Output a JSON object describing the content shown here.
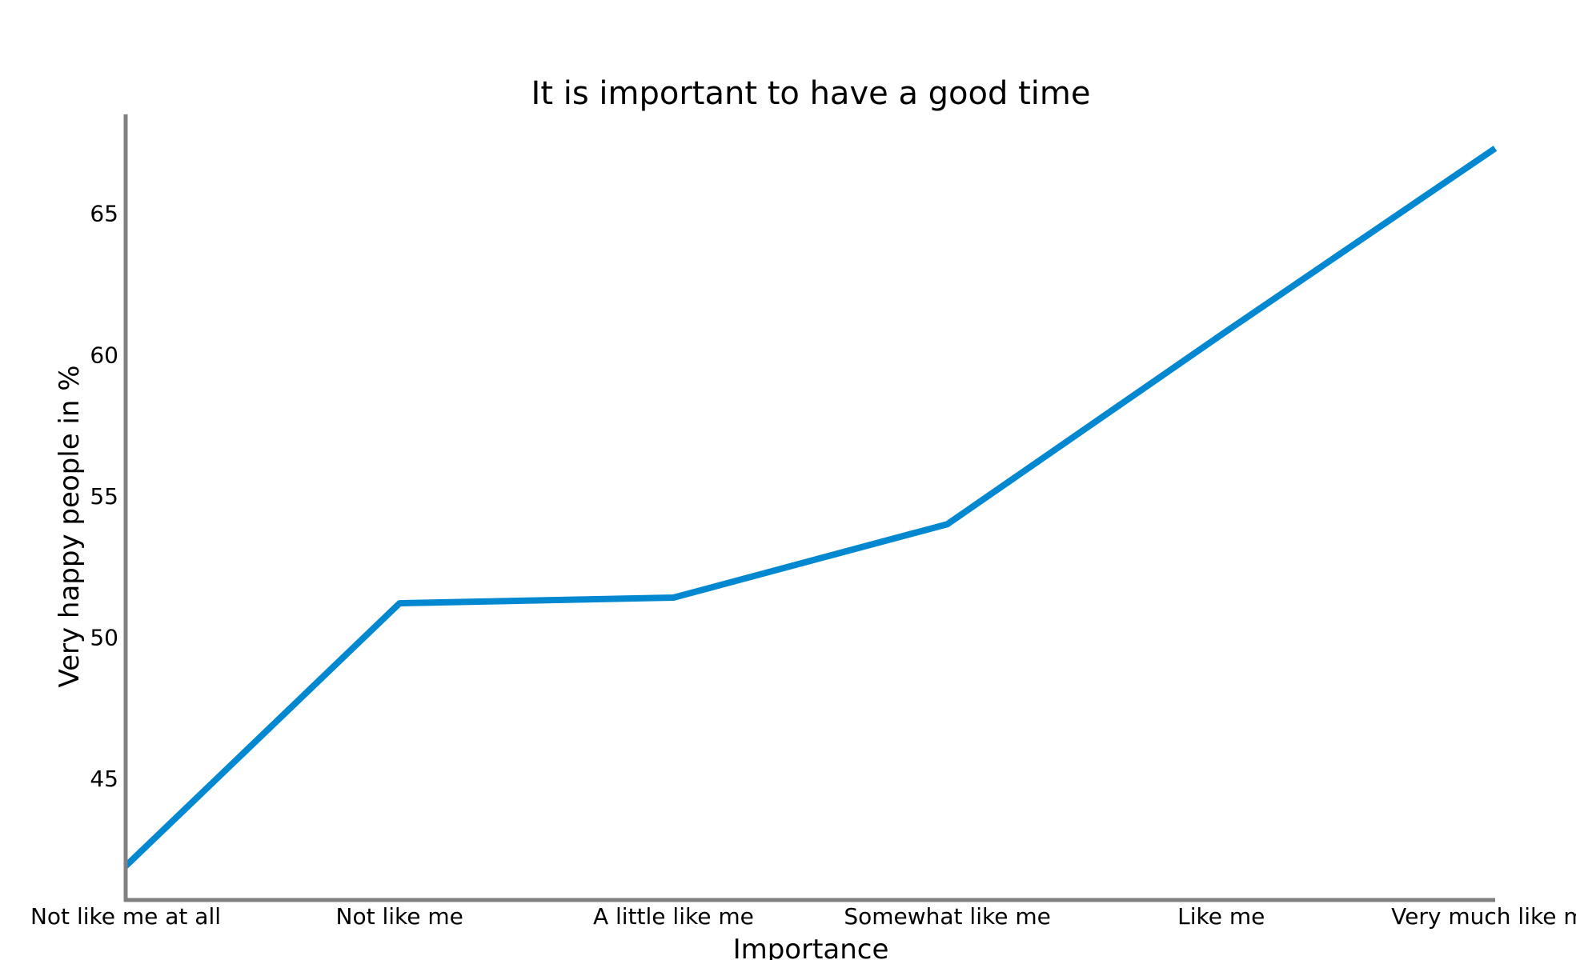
{
  "chart_data": {
    "type": "line",
    "title": "It is important to have a good time",
    "xlabel": "Importance",
    "ylabel": "Very happy people in %",
    "categories": [
      "Not like me at all",
      "Not like me",
      "A little like me",
      "Somewhat like me",
      "Like me",
      "Very much like me"
    ],
    "series": [
      {
        "values": [
          41.9,
          51.2,
          51.4,
          54.0,
          60.7,
          67.3
        ]
      }
    ],
    "ylim": [
      40.7,
      68.5
    ],
    "yticks": [
      45,
      50,
      55,
      60,
      65
    ],
    "grid": false,
    "colors": {
      "line": "#0288d1",
      "axis": "#808080"
    }
  }
}
